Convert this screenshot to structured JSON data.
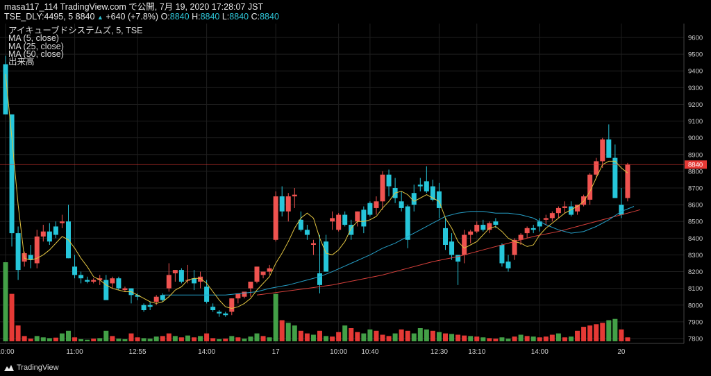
{
  "header": {
    "publisher_prefix": "masa117_114 TradingView.com で公開, 7月 19, 2020 17:28:07 JST",
    "symbol": "TSE_DLY:4495, 5",
    "last": "8840",
    "up_arrow": "▲",
    "change": "+640 (+7.8%)",
    "open_label": "O:",
    "open": "8840",
    "high_label": "H:",
    "high": "8840",
    "low_label": "L:",
    "low": "8840",
    "close_label": "C:",
    "close": "8840"
  },
  "legend": {
    "title": "アイキューブドシステムズ, 5, TSE",
    "ma5": "MA (5, close)",
    "ma25": "MA (25, close)",
    "ma50": "MA (50, close)",
    "volume": "出来高"
  },
  "footer": {
    "logo": "TradingView"
  },
  "colors": {
    "background": "#000000",
    "up": "#26c6da",
    "down": "#ef5350",
    "vol_up": "#43a047",
    "vol_down": "#e53935",
    "ma5": "#e0c341",
    "ma25": "#26a0c8",
    "ma50": "#d9413c",
    "grid": "#1f1f1f",
    "price_line": "#e53935"
  },
  "chart_data": {
    "type": "candlestick",
    "y_axis": {
      "min": 7800,
      "max": 9600,
      "step": 100,
      "ticks": [
        "9600",
        "9500",
        "9400",
        "9300",
        "9200",
        "9100",
        "9000",
        "8900",
        "8800",
        "8700",
        "8600",
        "8500",
        "8400",
        "8300",
        "8200",
        "8100",
        "8000",
        "7900",
        "7800"
      ]
    },
    "x_axis_labels": [
      {
        "label": "10:00",
        "bar": 0
      },
      {
        "label": "11:00",
        "bar": 11
      },
      {
        "label": "12:55",
        "bar": 21
      },
      {
        "label": "14:00",
        "bar": 32
      },
      {
        "label": "17",
        "bar": 43
      },
      {
        "label": "10:00",
        "bar": 53
      },
      {
        "label": "10:40",
        "bar": 58
      },
      {
        "label": "12:30",
        "bar": 69
      },
      {
        "label": "13:10",
        "bar": 75
      },
      {
        "label": "14:00",
        "bar": 85
      },
      {
        "label": "20",
        "bar": 98
      }
    ],
    "current_price": {
      "value": 8840,
      "label": "8840"
    },
    "candles": [
      [
        9440,
        9490,
        9140,
        9140
      ],
      [
        9140,
        9140,
        8350,
        8430
      ],
      [
        8430,
        8470,
        8150,
        8210
      ],
      [
        8260,
        8320,
        8230,
        8310
      ],
      [
        8300,
        8360,
        8220,
        8270
      ],
      [
        8250,
        8450,
        8220,
        8410
      ],
      [
        8410,
        8480,
        8380,
        8440
      ],
      [
        8440,
        8490,
        8360,
        8380
      ],
      [
        8470,
        8500,
        8400,
        8420
      ],
      [
        8490,
        8540,
        8460,
        8500
      ],
      [
        8500,
        8600,
        8280,
        8280
      ],
      [
        8230,
        8300,
        8160,
        8180
      ],
      [
        8180,
        8200,
        8130,
        8160
      ],
      [
        8150,
        8170,
        8130,
        8140
      ],
      [
        8140,
        8160,
        8130,
        8150
      ],
      [
        8150,
        8180,
        8120,
        8160
      ],
      [
        8150,
        8180,
        8030,
        8030
      ],
      [
        8130,
        8170,
        8100,
        8160
      ],
      [
        8160,
        8170,
        8090,
        8100
      ],
      [
        8090,
        8110,
        8080,
        8100
      ],
      [
        8100,
        8100,
        8010,
        8060
      ],
      [
        8060,
        8070,
        8030,
        8050
      ],
      [
        8000,
        8010,
        7960,
        7970
      ],
      [
        8000,
        8020,
        7970,
        7990
      ],
      [
        8020,
        8060,
        8000,
        8050
      ],
      [
        8060,
        8070,
        8020,
        8030
      ],
      [
        8100,
        8250,
        8080,
        8180
      ],
      [
        8190,
        8210,
        8140,
        8210
      ],
      [
        8210,
        8220,
        8130,
        8140
      ],
      [
        8150,
        8240,
        8130,
        8150
      ],
      [
        8160,
        8210,
        8090,
        8130
      ],
      [
        8140,
        8200,
        8100,
        8170
      ],
      [
        8110,
        8150,
        8010,
        8020
      ],
      [
        7990,
        8010,
        7960,
        7970
      ],
      [
        7960,
        7970,
        7930,
        7950
      ],
      [
        7950,
        7960,
        7930,
        7940
      ],
      [
        7960,
        8040,
        7940,
        8040
      ],
      [
        8040,
        8070,
        8010,
        8070
      ],
      [
        8050,
        8080,
        8040,
        8080
      ],
      [
        8100,
        8140,
        8050,
        8140
      ],
      [
        8140,
        8230,
        8130,
        8230
      ],
      [
        8180,
        8200,
        8160,
        8200
      ],
      [
        8200,
        8240,
        8180,
        8220
      ],
      [
        8390,
        8680,
        8380,
        8650
      ],
      [
        8650,
        8710,
        8530,
        8560
      ],
      [
        8560,
        8670,
        8500,
        8650
      ],
      [
        8650,
        8700,
        8580,
        8660
      ],
      [
        8510,
        8560,
        8440,
        8450
      ],
      [
        8450,
        8480,
        8390,
        8420
      ],
      [
        8360,
        8390,
        8300,
        8370
      ],
      [
        8190,
        8420,
        8070,
        8120
      ],
      [
        8380,
        8420,
        8200,
        8200
      ],
      [
        8500,
        8560,
        8450,
        8520
      ],
      [
        8450,
        8550,
        8440,
        8540
      ],
      [
        8540,
        8560,
        8470,
        8480
      ],
      [
        8480,
        8510,
        8390,
        8420
      ],
      [
        8500,
        8560,
        8470,
        8560
      ],
      [
        8570,
        8590,
        8430,
        8470
      ],
      [
        8610,
        8620,
        8530,
        8540
      ],
      [
        8580,
        8650,
        8540,
        8620
      ],
      [
        8620,
        8800,
        8570,
        8780
      ],
      [
        8780,
        8810,
        8650,
        8710
      ],
      [
        8700,
        8760,
        8610,
        8640
      ],
      [
        8620,
        8680,
        8560,
        8580
      ],
      [
        8590,
        8600,
        8340,
        8390
      ],
      [
        8670,
        8720,
        8560,
        8600
      ],
      [
        8720,
        8760,
        8680,
        8710
      ],
      [
        8740,
        8830,
        8670,
        8680
      ],
      [
        8710,
        8750,
        8620,
        8630
      ],
      [
        8680,
        8730,
        8520,
        8580
      ],
      [
        8460,
        8520,
        8330,
        8360
      ],
      [
        8380,
        8430,
        8270,
        8300
      ],
      [
        8300,
        8300,
        8120,
        8260
      ],
      [
        8300,
        8450,
        8250,
        8420
      ],
      [
        8420,
        8450,
        8370,
        8440
      ],
      [
        8440,
        8500,
        8430,
        8480
      ],
      [
        8480,
        8510,
        8440,
        8450
      ],
      [
        8450,
        8500,
        8430,
        8490
      ],
      [
        8500,
        8520,
        8460,
        8480
      ],
      [
        8360,
        8370,
        8230,
        8250
      ],
      [
        8260,
        8300,
        8200,
        8220
      ],
      [
        8300,
        8400,
        8270,
        8390
      ],
      [
        8390,
        8430,
        8360,
        8420
      ],
      [
        8430,
        8470,
        8400,
        8460
      ],
      [
        8460,
        8480,
        8430,
        8450
      ],
      [
        8500,
        8520,
        8440,
        8470
      ],
      [
        8510,
        8540,
        8480,
        8520
      ],
      [
        8520,
        8560,
        8500,
        8550
      ],
      [
        8550,
        8590,
        8520,
        8580
      ],
      [
        8580,
        8620,
        8550,
        8590
      ],
      [
        8590,
        8620,
        8530,
        8540
      ],
      [
        8560,
        8600,
        8540,
        8600
      ],
      [
        8600,
        8660,
        8590,
        8650
      ],
      [
        8630,
        8790,
        8600,
        8780
      ],
      [
        8780,
        8880,
        8760,
        8860
      ],
      [
        8860,
        9000,
        8820,
        8990
      ],
      [
        8990,
        9080,
        8880,
        8880
      ],
      [
        8880,
        8960,
        8640,
        8640
      ],
      [
        8600,
        8700,
        8520,
        8540
      ],
      [
        8640,
        8850,
        8620,
        8840
      ]
    ],
    "volume": [
      [
        300,
        1
      ],
      [
        180,
        0
      ],
      [
        60,
        0
      ],
      [
        20,
        0
      ],
      [
        10,
        0
      ],
      [
        20,
        1
      ],
      [
        15,
        1
      ],
      [
        12,
        1
      ],
      [
        14,
        0
      ],
      [
        30,
        1
      ],
      [
        40,
        1
      ],
      [
        15,
        0
      ],
      [
        8,
        1
      ],
      [
        6,
        1
      ],
      [
        10,
        0
      ],
      [
        12,
        1
      ],
      [
        40,
        1
      ],
      [
        20,
        0
      ],
      [
        10,
        1
      ],
      [
        8,
        1
      ],
      [
        30,
        0
      ],
      [
        15,
        0
      ],
      [
        12,
        1
      ],
      [
        10,
        1
      ],
      [
        18,
        1
      ],
      [
        20,
        0
      ],
      [
        30,
        0
      ],
      [
        20,
        1
      ],
      [
        15,
        0
      ],
      [
        22,
        1
      ],
      [
        15,
        0
      ],
      [
        20,
        1
      ],
      [
        30,
        0
      ],
      [
        12,
        0
      ],
      [
        8,
        1
      ],
      [
        10,
        0
      ],
      [
        20,
        1
      ],
      [
        15,
        0
      ],
      [
        10,
        1
      ],
      [
        18,
        1
      ],
      [
        30,
        1
      ],
      [
        20,
        0
      ],
      [
        15,
        1
      ],
      [
        180,
        1
      ],
      [
        80,
        0
      ],
      [
        70,
        1
      ],
      [
        60,
        1
      ],
      [
        40,
        0
      ],
      [
        30,
        0
      ],
      [
        25,
        1
      ],
      [
        40,
        0
      ],
      [
        20,
        1
      ],
      [
        18,
        0
      ],
      [
        35,
        0
      ],
      [
        60,
        1
      ],
      [
        50,
        0
      ],
      [
        35,
        0
      ],
      [
        30,
        1
      ],
      [
        45,
        1
      ],
      [
        40,
        0
      ],
      [
        25,
        0
      ],
      [
        20,
        0
      ],
      [
        30,
        1
      ],
      [
        45,
        0
      ],
      [
        40,
        0
      ],
      [
        30,
        1
      ],
      [
        50,
        1
      ],
      [
        45,
        1
      ],
      [
        40,
        0
      ],
      [
        35,
        1
      ],
      [
        30,
        0
      ],
      [
        28,
        1
      ],
      [
        25,
        0
      ],
      [
        22,
        0
      ],
      [
        20,
        1
      ],
      [
        18,
        0
      ],
      [
        15,
        1
      ],
      [
        12,
        0
      ],
      [
        10,
        0
      ],
      [
        15,
        1
      ],
      [
        10,
        1
      ],
      [
        18,
        0
      ],
      [
        25,
        1
      ],
      [
        20,
        0
      ],
      [
        18,
        1
      ],
      [
        15,
        0
      ],
      [
        18,
        0
      ],
      [
        25,
        0
      ],
      [
        30,
        1
      ],
      [
        15,
        0
      ],
      [
        18,
        1
      ],
      [
        40,
        0
      ],
      [
        55,
        0
      ],
      [
        60,
        0
      ],
      [
        65,
        0
      ],
      [
        70,
        0
      ],
      [
        80,
        1
      ],
      [
        85,
        1
      ],
      [
        45,
        0
      ],
      [
        15,
        0
      ]
    ],
    "ma5": [
      [
        0,
        9380
      ],
      [
        1,
        9000
      ],
      [
        2,
        8600
      ],
      [
        3,
        8280
      ],
      [
        4,
        8270
      ],
      [
        5,
        8280
      ],
      [
        6,
        8300
      ],
      [
        7,
        8330
      ],
      [
        8,
        8370
      ],
      [
        9,
        8410
      ],
      [
        10,
        8390
      ],
      [
        11,
        8340
      ],
      [
        12,
        8280
      ],
      [
        13,
        8230
      ],
      [
        14,
        8170
      ],
      [
        15,
        8150
      ],
      [
        16,
        8120
      ],
      [
        17,
        8100
      ],
      [
        18,
        8090
      ],
      [
        19,
        8080
      ],
      [
        20,
        8080
      ],
      [
        21,
        8060
      ],
      [
        22,
        8040
      ],
      [
        23,
        8020
      ],
      [
        24,
        8010
      ],
      [
        25,
        8020
      ],
      [
        26,
        8050
      ],
      [
        27,
        8090
      ],
      [
        28,
        8110
      ],
      [
        29,
        8150
      ],
      [
        30,
        8160
      ],
      [
        31,
        8160
      ],
      [
        32,
        8130
      ],
      [
        33,
        8080
      ],
      [
        34,
        8030
      ],
      [
        35,
        7990
      ],
      [
        36,
        7980
      ],
      [
        37,
        7990
      ],
      [
        38,
        8010
      ],
      [
        39,
        8040
      ],
      [
        40,
        8090
      ],
      [
        41,
        8130
      ],
      [
        42,
        8170
      ],
      [
        43,
        8250
      ],
      [
        44,
        8310
      ],
      [
        45,
        8380
      ],
      [
        46,
        8460
      ],
      [
        47,
        8520
      ],
      [
        48,
        8550
      ],
      [
        49,
        8520
      ],
      [
        50,
        8400
      ],
      [
        51,
        8310
      ],
      [
        52,
        8300
      ],
      [
        53,
        8330
      ],
      [
        54,
        8380
      ],
      [
        55,
        8460
      ],
      [
        56,
        8500
      ],
      [
        57,
        8500
      ],
      [
        58,
        8510
      ],
      [
        59,
        8530
      ],
      [
        60,
        8580
      ],
      [
        61,
        8620
      ],
      [
        62,
        8670
      ],
      [
        63,
        8680
      ],
      [
        64,
        8660
      ],
      [
        65,
        8620
      ],
      [
        66,
        8640
      ],
      [
        67,
        8660
      ],
      [
        68,
        8640
      ],
      [
        69,
        8620
      ],
      [
        70,
        8520
      ],
      [
        71,
        8460
      ],
      [
        72,
        8380
      ],
      [
        73,
        8340
      ],
      [
        74,
        8360
      ],
      [
        75,
        8380
      ],
      [
        76,
        8420
      ],
      [
        77,
        8460
      ],
      [
        78,
        8470
      ],
      [
        79,
        8440
      ],
      [
        80,
        8400
      ],
      [
        81,
        8380
      ],
      [
        82,
        8370
      ],
      [
        83,
        8350
      ],
      [
        84,
        8360
      ],
      [
        85,
        8420
      ],
      [
        86,
        8460
      ],
      [
        87,
        8490
      ],
      [
        88,
        8520
      ],
      [
        89,
        8550
      ],
      [
        90,
        8570
      ],
      [
        91,
        8590
      ],
      [
        92,
        8620
      ],
      [
        93,
        8680
      ],
      [
        94,
        8760
      ],
      [
        95,
        8840
      ],
      [
        96,
        8860
      ],
      [
        97,
        8860
      ],
      [
        98,
        8820
      ],
      [
        99,
        8790
      ]
    ],
    "ma25": [
      [
        25,
        8060
      ],
      [
        30,
        8060
      ],
      [
        35,
        8060
      ],
      [
        40,
        8080
      ],
      [
        42,
        8100
      ],
      [
        45,
        8120
      ],
      [
        48,
        8150
      ],
      [
        50,
        8170
      ],
      [
        52,
        8200
      ],
      [
        55,
        8250
      ],
      [
        58,
        8300
      ],
      [
        60,
        8340
      ],
      [
        62,
        8370
      ],
      [
        64,
        8410
      ],
      [
        66,
        8450
      ],
      [
        68,
        8490
      ],
      [
        70,
        8530
      ],
      [
        72,
        8550
      ],
      [
        74,
        8560
      ],
      [
        76,
        8560
      ],
      [
        78,
        8550
      ],
      [
        80,
        8550
      ],
      [
        82,
        8540
      ],
      [
        84,
        8520
      ],
      [
        86,
        8480
      ],
      [
        88,
        8450
      ],
      [
        90,
        8430
      ],
      [
        92,
        8440
      ],
      [
        94,
        8470
      ],
      [
        96,
        8510
      ],
      [
        98,
        8560
      ],
      [
        100,
        8590
      ]
    ],
    "ma50": [
      [
        40,
        8060
      ],
      [
        44,
        8080
      ],
      [
        48,
        8100
      ],
      [
        52,
        8120
      ],
      [
        56,
        8150
      ],
      [
        60,
        8180
      ],
      [
        64,
        8220
      ],
      [
        68,
        8260
      ],
      [
        72,
        8290
      ],
      [
        76,
        8330
      ],
      [
        80,
        8370
      ],
      [
        84,
        8410
      ],
      [
        88,
        8440
      ],
      [
        92,
        8480
      ],
      [
        96,
        8520
      ],
      [
        100,
        8560
      ],
      [
        101,
        8570
      ]
    ]
  }
}
